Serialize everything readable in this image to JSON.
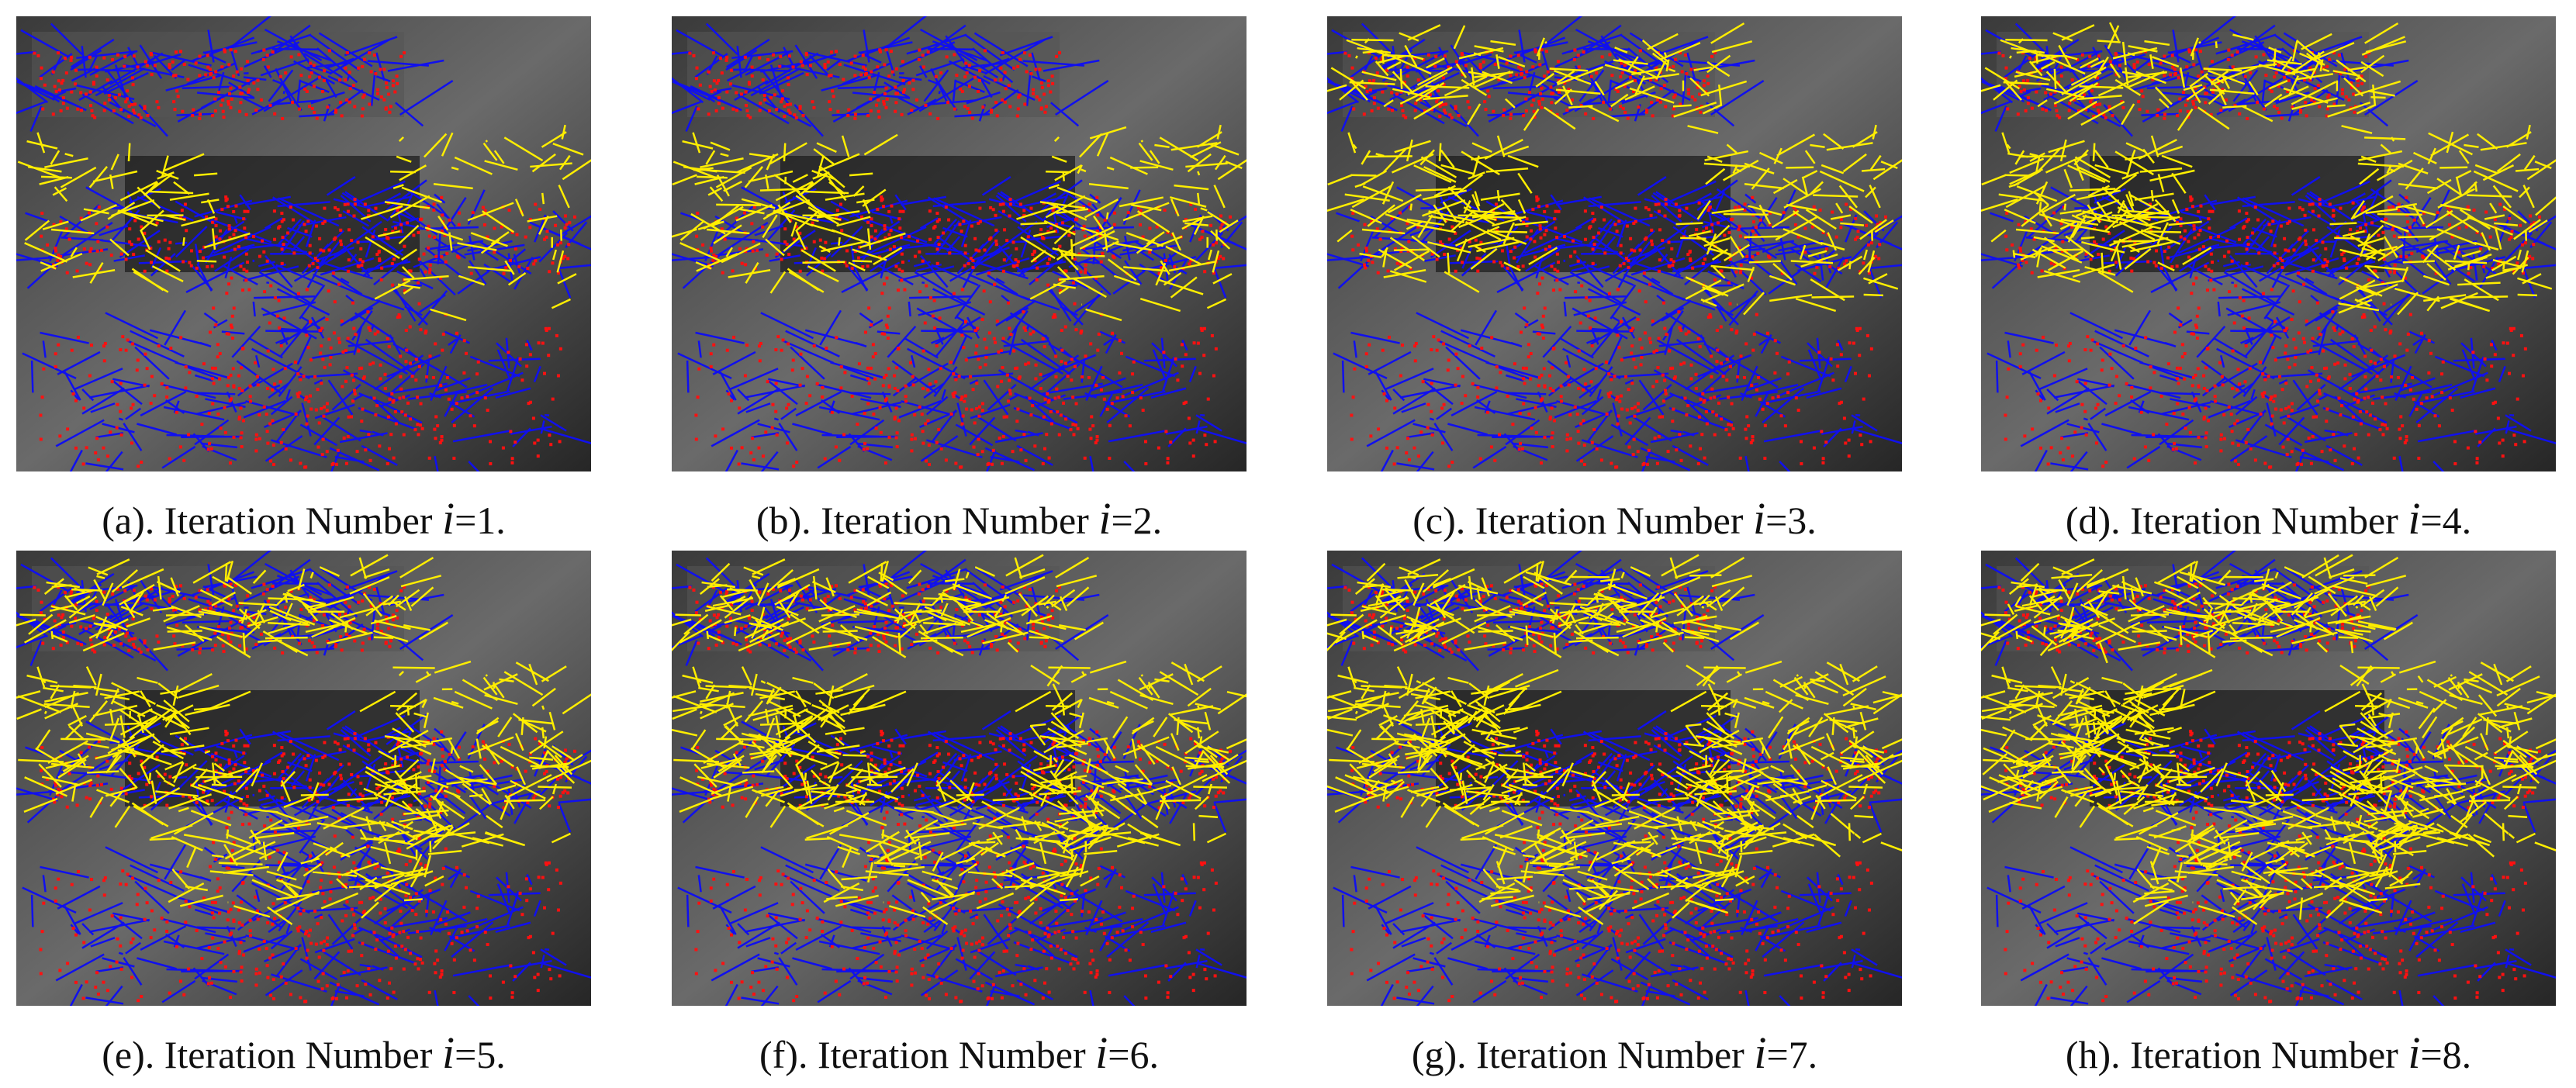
{
  "figure": {
    "panels": [
      {
        "prefix": "(a). Iteration Number ",
        "var": "i",
        "suffix": "=1."
      },
      {
        "prefix": "(b). Iteration Number ",
        "var": "i",
        "suffix": "=2."
      },
      {
        "prefix": "(c). Iteration Number ",
        "var": "i",
        "suffix": "=3."
      },
      {
        "prefix": "(d). Iteration Number ",
        "var": "i",
        "suffix": "=4."
      },
      {
        "prefix": "(e). Iteration Number ",
        "var": "i",
        "suffix": "=5."
      },
      {
        "prefix": "(f). Iteration Number ",
        "var": "i",
        "suffix": "=6."
      },
      {
        "prefix": "(g). Iteration Number ",
        "var": "i",
        "suffix": "=7."
      },
      {
        "prefix": "(h). Iteration Number ",
        "var": "i",
        "suffix": "=8."
      }
    ]
  }
}
